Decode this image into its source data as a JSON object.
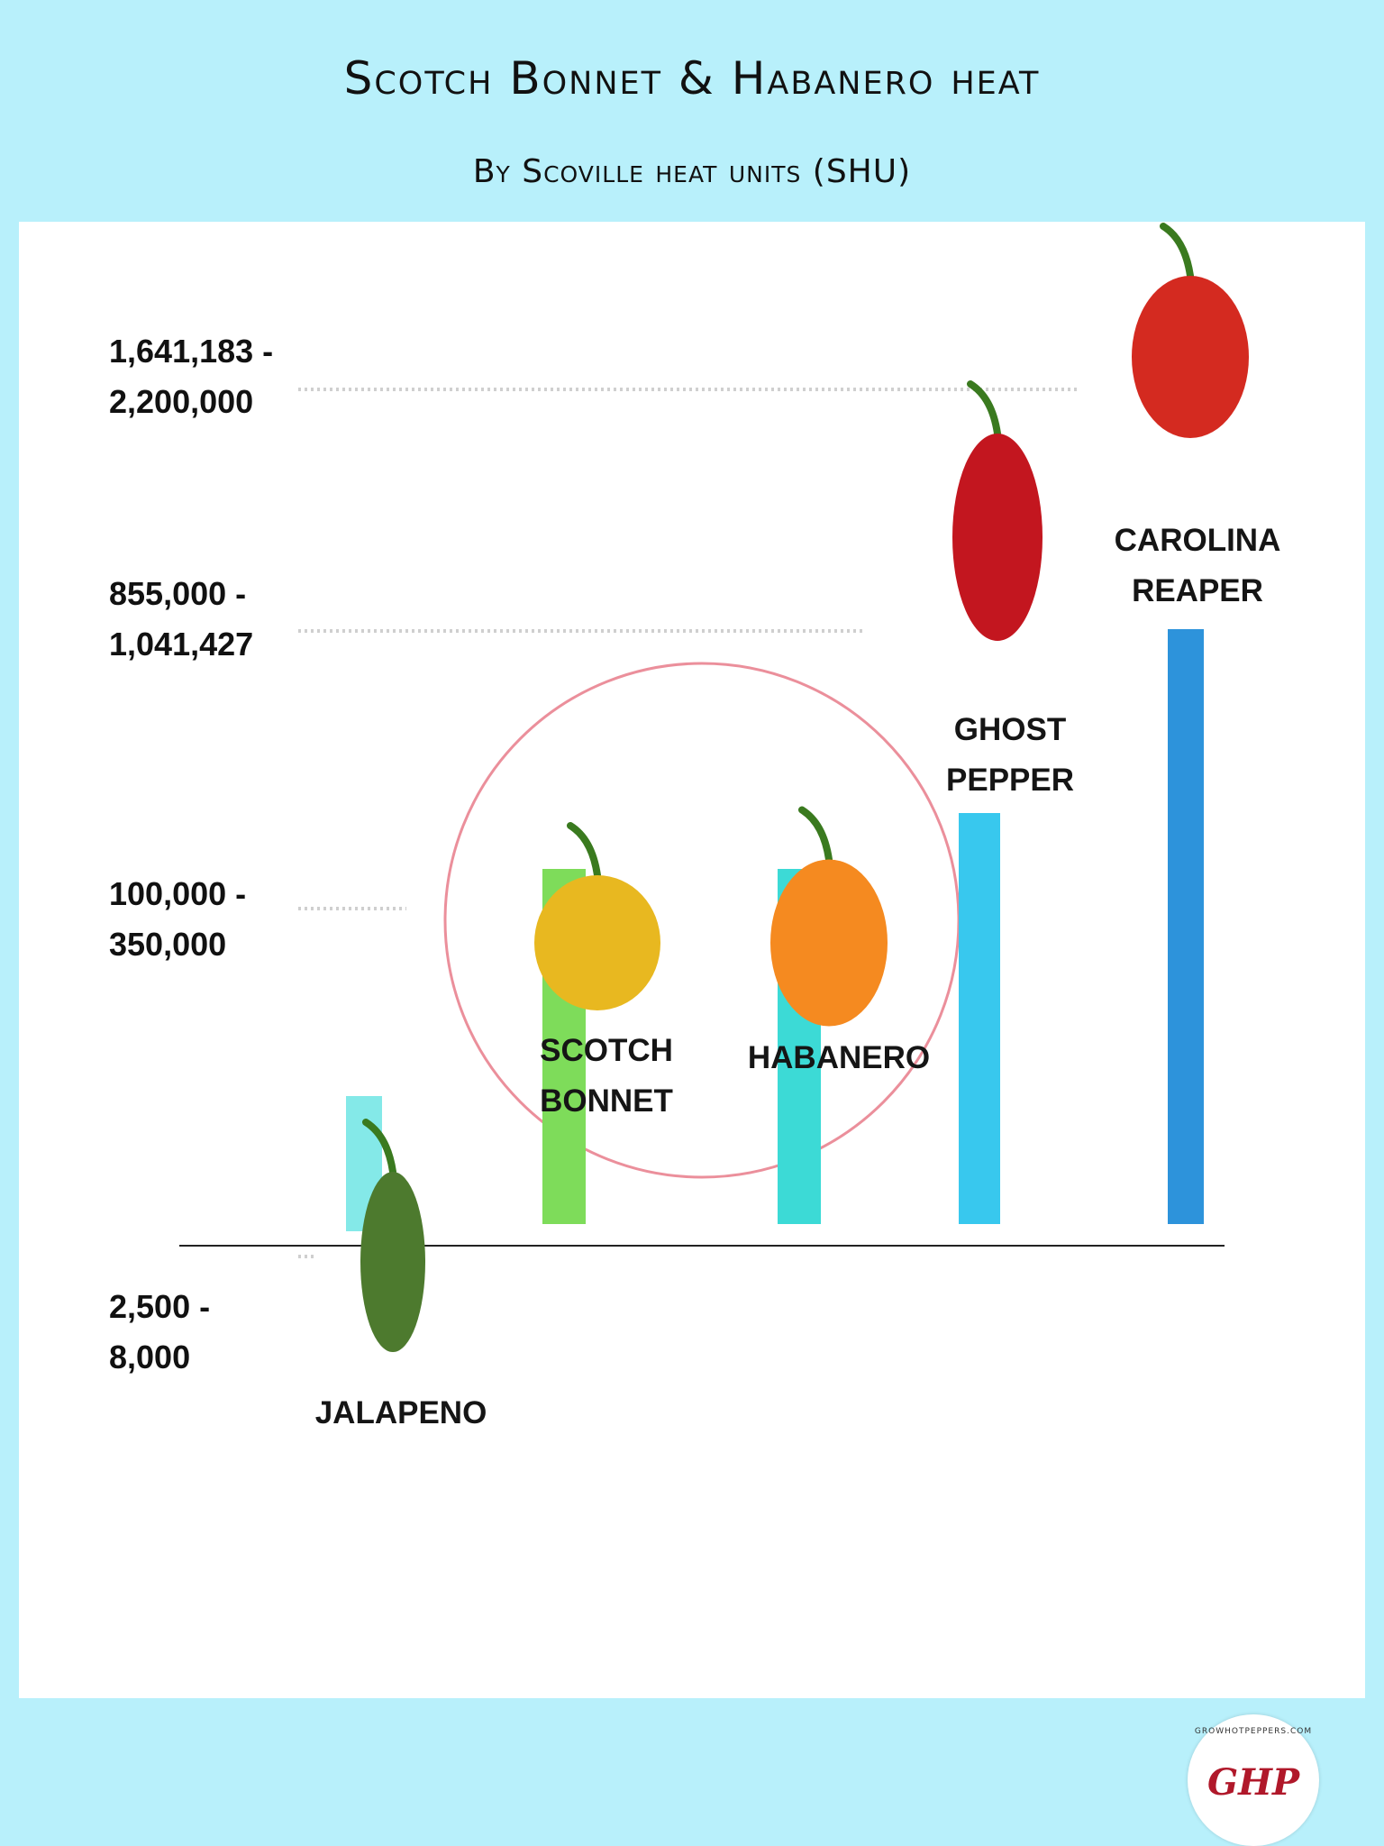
{
  "title": "Scotch Bonnet & Habanero heat",
  "subtitle": "By Scoville heat units (SHU)",
  "logo": {
    "text": "GHP",
    "url": "GROWHOTPEPPERS.COM"
  },
  "chart_data": {
    "type": "bar",
    "categories": [
      "JALAPENO",
      "SCOTCH BONNET",
      "HABANERO",
      "GHOST PEPPER",
      "CAROLINA REAPER"
    ],
    "ranges": [
      [
        2500,
        8000
      ],
      [
        100000,
        350000
      ],
      [
        100000,
        350000
      ],
      [
        855000,
        1041427
      ],
      [
        1641183,
        2200000
      ]
    ],
    "tick_labels": [
      "2,500 -\n8,000",
      "100,000 -\n350,000",
      "855,000 -\n1,041,427",
      "1,641,183 -\n2,200,000"
    ],
    "bar_colors": [
      "#84e9e8",
      "#7edc5a",
      "#3cdad6",
      "#38c8ee",
      "#2d93db"
    ],
    "highlight": [
      "SCOTCH BONNET",
      "HABANERO"
    ],
    "grid": "dotted",
    "legend": "none"
  }
}
